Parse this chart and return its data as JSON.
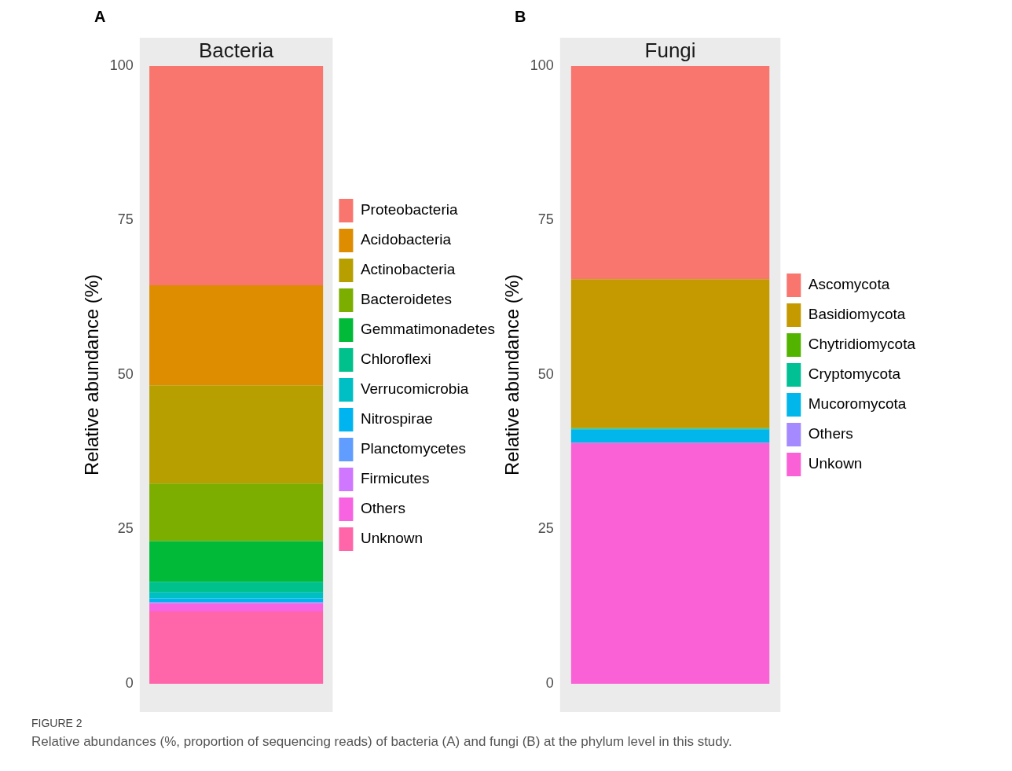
{
  "chart_data": [
    {
      "type": "bar",
      "stacked": true,
      "title": "Bacteria",
      "ylabel": "Relative abundance (%)",
      "categories": [
        null
      ],
      "ylim": [
        0,
        100
      ],
      "yticks": [
        0,
        25,
        50,
        75,
        100
      ],
      "legend": "right",
      "annotations": [
        "A",
        "FIGURE 2",
        "Relative abundances (%, proportion of sequencing reads) of bacteria (A) and fungi (B) at the phylum level in this study."
      ],
      "series": [
        {
          "name": "Unknown",
          "color": "#ff66aa",
          "values": [
            11.7
          ]
        },
        {
          "name": "Others",
          "color": "#f763e0",
          "values": [
            1.3
          ]
        },
        {
          "name": "Firmicutes",
          "color": "#cf78ff",
          "values": [
            0.1
          ]
        },
        {
          "name": "Planctomycetes",
          "color": "#619cff",
          "values": [
            0.1
          ]
        },
        {
          "name": "Nitrospirae",
          "color": "#00b4f0",
          "values": [
            0.6
          ]
        },
        {
          "name": "Verrucomicrobia",
          "color": "#00bfc4",
          "values": [
            1.0
          ]
        },
        {
          "name": "Chloroflexi",
          "color": "#00c08b",
          "values": [
            1.7
          ]
        },
        {
          "name": "Gemmatimonadetes",
          "color": "#00ba38",
          "values": [
            6.6
          ]
        },
        {
          "name": "Bacteroidetes",
          "color": "#7cae00",
          "values": [
            9.3
          ]
        },
        {
          "name": "Actinobacteria",
          "color": "#b79f00",
          "values": [
            15.9
          ]
        },
        {
          "name": "Acidobacteria",
          "color": "#de8c00",
          "values": [
            16.2
          ]
        },
        {
          "name": "Proteobacteria",
          "color": "#f8766d",
          "values": [
            35.5
          ]
        }
      ]
    },
    {
      "type": "bar",
      "stacked": true,
      "title": "Fungi",
      "ylabel": "Relative abundance (%)",
      "categories": [
        null
      ],
      "ylim": [
        0,
        100
      ],
      "yticks": [
        0,
        25,
        50,
        75,
        100
      ],
      "legend": "right",
      "annotations": [
        "B"
      ],
      "series": [
        {
          "name": "Unkown",
          "color": "#fb61d7",
          "values": [
            39.0
          ]
        },
        {
          "name": "Others",
          "color": "#a58aff",
          "values": [
            0
          ]
        },
        {
          "name": "Mucoromycota",
          "color": "#00b6eb",
          "values": [
            2.2
          ]
        },
        {
          "name": "Cryptomycota",
          "color": "#00c094",
          "values": [
            0.1
          ]
        },
        {
          "name": "Chytridiomycota",
          "color": "#53b400",
          "values": [
            0.1
          ]
        },
        {
          "name": "Basidiomycota",
          "color": "#c49a00",
          "values": [
            24.1
          ]
        },
        {
          "name": "Ascomycota",
          "color": "#f8766d",
          "values": [
            34.5
          ]
        }
      ]
    }
  ]
}
